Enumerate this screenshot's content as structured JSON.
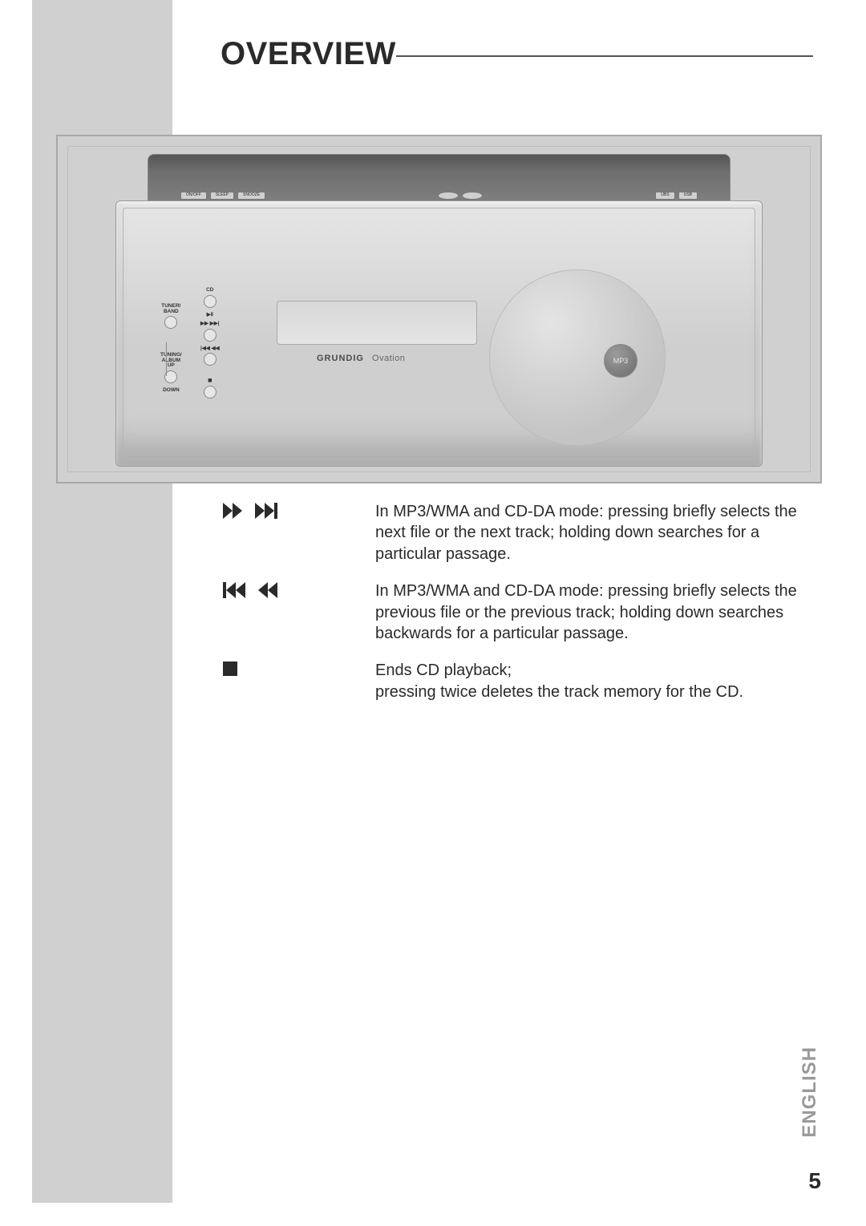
{
  "title": "OVERVIEW",
  "language_tab": "ENGLISH",
  "page_number": "5",
  "colors": {
    "sidebar_bg": "#d0d0d0",
    "figure_border": "#a8a8a8",
    "figure_bg": "#d0d0d0",
    "title_color": "#2a2a2a",
    "body_text": "#2a2a2a",
    "lang_tab_color": "#9a9a9a"
  },
  "device": {
    "brand": "GRUNDIG",
    "model": "Ovation",
    "badge_label": "MP3",
    "top_buttons_left": [
      "ON/OFF",
      "SLEEP",
      "SNOOZE"
    ],
    "top_buttons_right": [
      "UBS",
      "USB"
    ],
    "left_column": {
      "tuner_band": "TUNER/\nBAND",
      "tuning_album_up": "TUNING/\nALBUM\nUP",
      "down": "DOWN"
    },
    "right_column": {
      "cd": "CD",
      "play_pause": "▶Ⅱ",
      "next_fwd": "▶▶ ▶▶|",
      "prev_rew": "|◀◀ ◀◀",
      "stop": "■"
    }
  },
  "descriptions": [
    {
      "symbol": "fwd-next",
      "text": "In MP3/WMA and CD-DA mode: pressing briefly selects the next file or the next track; holding down searches for a particular passage."
    },
    {
      "symbol": "prev-rew",
      "text": "In MP3/WMA and CD-DA mode: pressing briefly selects the previous file or the previous track; holding down searches backwards for a particular passage."
    },
    {
      "symbol": "stop",
      "text": "Ends CD playback;\npressing twice deletes the track memory for the CD."
    }
  ]
}
